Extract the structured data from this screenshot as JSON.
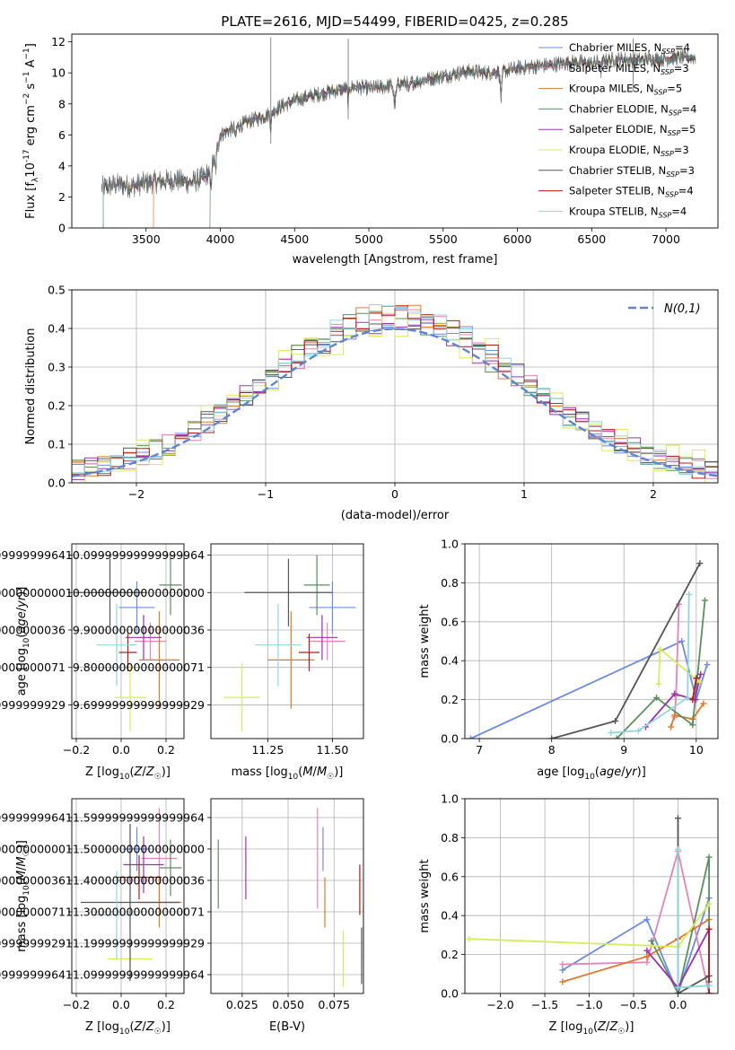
{
  "series_styles": [
    {
      "name": "Chabrier MILES",
      "nssp": "4",
      "color": "#6b8ce3"
    },
    {
      "name": "Salpeter MILES",
      "nssp": "3",
      "color": "#e882b4"
    },
    {
      "name": "Kroupa MILES",
      "nssp": "5",
      "color": "#e0782a"
    },
    {
      "name": "Chabrier ELODIE",
      "nssp": "4",
      "color": "#5a8f5e"
    },
    {
      "name": "Salpeter ELODIE",
      "nssp": "5",
      "color": "#9b30b0"
    },
    {
      "name": "Kroupa ELODIE",
      "nssp": "3",
      "color": "#d7ec5a"
    },
    {
      "name": "Chabrier STELIB",
      "nssp": "3",
      "color": "#555555"
    },
    {
      "name": "Salpeter STELIB",
      "nssp": "4",
      "color": "#b01c1c"
    },
    {
      "name": "Kroupa STELIB",
      "nssp": "4",
      "color": "#8fd6e0"
    }
  ],
  "chart_data": [
    {
      "id": "spectrum",
      "type": "line",
      "title": "PLATE=2616, MJD=54499, FIBERID=0425, z=0.285",
      "xlabel": "wavelength [Angstrom, rest frame]",
      "ylabel_prefix": "Flux [f",
      "ylabel_suffix": "10",
      "ylabel_exp": "-17",
      "ylabel_units": " erg cm",
      "xlim": [
        3000,
        7350
      ],
      "ylim": [
        0,
        12.5
      ],
      "xticks": [
        3500,
        4000,
        4500,
        5000,
        5500,
        6000,
        6500,
        7000
      ],
      "yticks": [
        0,
        2,
        4,
        6,
        8,
        10,
        12
      ],
      "grid": false,
      "legend_position": "upper-right",
      "continuum": {
        "x": [
          3200,
          3300,
          3400,
          3500,
          3600,
          3700,
          3800,
          3900,
          3950,
          4000,
          4100,
          4200,
          4300,
          4400,
          4500,
          4600,
          4700,
          4800,
          4900,
          5000,
          5100,
          5200,
          5300,
          5400,
          5500,
          5600,
          5700,
          5800,
          5900,
          6000,
          6100,
          6200,
          6300,
          6400,
          6500,
          6600,
          6700,
          6800,
          6900,
          7000,
          7100,
          7200
        ],
        "y": [
          2.6,
          2.8,
          2.7,
          2.9,
          3.0,
          3.1,
          2.9,
          3.3,
          4.2,
          6.0,
          6.5,
          6.9,
          7.2,
          7.8,
          8.2,
          8.5,
          8.7,
          8.9,
          9.1,
          9.0,
          9.1,
          9.3,
          9.4,
          9.6,
          9.8,
          10.0,
          10.1,
          10.0,
          10.1,
          10.3,
          10.4,
          10.5,
          10.6,
          10.7,
          10.6,
          10.8,
          10.9,
          10.8,
          10.9,
          10.9,
          11.0,
          11.0
        ]
      },
      "start_wavelengths": [
        3210,
        3210,
        3550,
        3930,
        3210,
        3210,
        3210,
        3210,
        3210
      ],
      "spike_lines": [
        {
          "x": 4340,
          "top": 12.3
        },
        {
          "x": 4861,
          "top": 12.2
        },
        {
          "x": 6780,
          "top": 12.2
        }
      ]
    },
    {
      "id": "residuals",
      "type": "bar",
      "xlabel": "(data-model)/error",
      "ylabel": "Normed distribution",
      "xlim": [
        -2.5,
        2.5
      ],
      "ylim": [
        0,
        0.5
      ],
      "xticks": [
        -2,
        -1,
        0,
        1,
        2
      ],
      "yticks": [
        0,
        0.1,
        0.2,
        0.3,
        0.4,
        0.5
      ],
      "grid": true,
      "bin_width": 0.1,
      "legend": {
        "label": "N(0,1)",
        "position": "upper-right"
      },
      "gaussian_sigma": 1
    },
    {
      "id": "age_vs_z",
      "type": "scatter",
      "xlabel": "Z [log10(Z/Z☉)]",
      "ylabel": "age  [log10(age/yr)]",
      "xlim": [
        -0.22,
        0.28
      ],
      "ylim": [
        9.61,
        10.13
      ],
      "xticks": [
        -0.2,
        0.0,
        0.2
      ],
      "yticks": [
        9.7,
        9.8,
        9.9,
        10.0,
        10.1
      ],
      "grid": true,
      "points": [
        {
          "x": 0.07,
          "y": 9.96,
          "xerr": 0.08,
          "yerr": 0.07
        },
        {
          "x": 0.13,
          "y": 9.87,
          "xerr": 0.07,
          "yerr": 0.05
        },
        {
          "x": 0.17,
          "y": 9.82,
          "xerr": 0.09,
          "yerr": 0.13
        },
        {
          "x": 0.22,
          "y": 10.02,
          "xerr": 0.05,
          "yerr": 0.08
        },
        {
          "x": 0.1,
          "y": 9.88,
          "xerr": 0.08,
          "yerr": 0.06
        },
        {
          "x": 0.04,
          "y": 9.72,
          "xerr": 0.07,
          "yerr": 0.09
        },
        {
          "x": -0.05,
          "y": 10.0,
          "xerr": 0.16,
          "yerr": 0.09
        },
        {
          "x": 0.03,
          "y": 9.84,
          "xerr": 0.04,
          "yerr": 0.05
        },
        {
          "x": -0.02,
          "y": 9.86,
          "xerr": 0.09,
          "yerr": 0.11
        }
      ]
    },
    {
      "id": "age_vs_mass",
      "type": "scatter",
      "xlabel": "mass [log10(M/M☉)]",
      "xlim": [
        11.03,
        11.62
      ],
      "ylim": [
        9.61,
        10.13
      ],
      "xticks": [
        11.25,
        11.5
      ],
      "yticks": [
        9.7,
        9.8,
        9.9,
        10.0,
        10.1
      ],
      "grid": true,
      "points": [
        {
          "x": 11.5,
          "y": 9.96,
          "xerr": 0.09,
          "yerr": 0.07
        },
        {
          "x": 11.48,
          "y": 9.87,
          "xerr": 0.07,
          "yerr": 0.05
        },
        {
          "x": 11.34,
          "y": 9.82,
          "xerr": 0.09,
          "yerr": 0.13
        },
        {
          "x": 11.44,
          "y": 10.02,
          "xerr": 0.05,
          "yerr": 0.08
        },
        {
          "x": 11.46,
          "y": 9.88,
          "xerr": 0.06,
          "yerr": 0.06
        },
        {
          "x": 11.15,
          "y": 9.72,
          "xerr": 0.07,
          "yerr": 0.09
        },
        {
          "x": 11.33,
          "y": 10.0,
          "xerr": 0.17,
          "yerr": 0.09
        },
        {
          "x": 11.41,
          "y": 9.84,
          "xerr": 0.04,
          "yerr": 0.05
        },
        {
          "x": 11.29,
          "y": 9.86,
          "xerr": 0.09,
          "yerr": 0.11
        }
      ]
    },
    {
      "id": "weight_vs_age",
      "type": "line",
      "xlabel": "age  [log10(age/yr)]",
      "ylabel": "mass weight",
      "xlim": [
        6.8,
        10.3
      ],
      "ylim": [
        0,
        1
      ],
      "xticks": [
        7,
        8,
        9,
        10
      ],
      "yticks": [
        0,
        0.2,
        0.4,
        0.6,
        0.8,
        1.0
      ],
      "grid": true,
      "series": [
        {
          "x": [
            6.88,
            9.8,
            10.0,
            10.15
          ],
          "y": [
            0.0,
            0.5,
            0.2,
            0.38
          ]
        },
        {
          "x": [
            9.7,
            9.72,
            9.76
          ],
          "y": [
            0.11,
            0.22,
            0.69
          ]
        },
        {
          "x": [
            9.65,
            9.7,
            9.95,
            10.1
          ],
          "y": [
            0.06,
            0.12,
            0.1,
            0.18
          ]
        },
        {
          "x": [
            8.9,
            9.45,
            9.95,
            10.12
          ],
          "y": [
            0.0,
            0.21,
            0.07,
            0.71
          ]
        },
        {
          "x": [
            9.3,
            9.7,
            9.98,
            10.06
          ],
          "y": [
            0.06,
            0.23,
            0.2,
            0.33
          ]
        },
        {
          "x": [
            9.48,
            9.5,
            10.05
          ],
          "y": [
            0.28,
            0.46,
            0.29
          ]
        },
        {
          "x": [
            8.0,
            8.88,
            10.05
          ],
          "y": [
            0.0,
            0.09,
            0.9
          ]
        },
        {
          "x": [
            9.95,
            10.0
          ],
          "y": [
            0.2,
            0.31
          ]
        },
        {
          "x": [
            8.82,
            9.2,
            9.88,
            9.9
          ],
          "y": [
            0.03,
            0.04,
            0.21,
            0.74
          ]
        }
      ]
    },
    {
      "id": "mass_vs_z",
      "type": "scatter",
      "xlabel": "Z [log10(Z/Z☉)]",
      "ylabel": "mass [log10(M/M☉)]",
      "xlim": [
        -0.22,
        0.28
      ],
      "ylim": [
        11.04,
        11.66
      ],
      "xticks": [
        -0.2,
        0.0,
        0.2
      ],
      "yticks": [
        11.1,
        11.2,
        11.3,
        11.4,
        11.5,
        11.6
      ],
      "grid": true,
      "points": [
        {
          "x": 0.07,
          "y": 11.5,
          "xerr": 0.06,
          "yerr": 0.07
        },
        {
          "x": 0.17,
          "y": 11.47,
          "xerr": 0.08,
          "yerr": 0.16
        },
        {
          "x": 0.17,
          "y": 11.33,
          "xerr": 0.1,
          "yerr": 0.08
        },
        {
          "x": 0.22,
          "y": 11.44,
          "xerr": 0.05,
          "yerr": 0.09
        },
        {
          "x": 0.1,
          "y": 11.45,
          "xerr": 0.09,
          "yerr": 0.09
        },
        {
          "x": 0.04,
          "y": 11.15,
          "xerr": 0.1,
          "yerr": 0.07
        },
        {
          "x": 0.04,
          "y": 11.33,
          "xerr": 0.22,
          "yerr": 0.25
        },
        {
          "x": 0.08,
          "y": 11.41,
          "xerr": 0.1,
          "yerr": 0.07
        },
        {
          "x": -0.02,
          "y": 11.29,
          "xerr": 0.1,
          "yerr": 0.14
        }
      ]
    },
    {
      "id": "mass_vs_ebv",
      "type": "scatter",
      "xlabel": "E(B-V)",
      "xlim": [
        0.008,
        0.091
      ],
      "ylim": [
        11.04,
        11.66
      ],
      "xticks": [
        0.025,
        0.05,
        0.075
      ],
      "yticks": [
        11.1,
        11.2,
        11.3,
        11.4,
        11.5,
        11.6
      ],
      "grid": true,
      "points": [
        {
          "x": 0.069,
          "y": 11.5,
          "yerr": 0.07
        },
        {
          "x": 0.066,
          "y": 11.47,
          "yerr": 0.16
        },
        {
          "x": 0.07,
          "y": 11.33,
          "yerr": 0.08
        },
        {
          "x": 0.012,
          "y": 11.42,
          "yerr": 0.11
        },
        {
          "x": 0.027,
          "y": 11.44,
          "yerr": 0.1
        },
        {
          "x": 0.08,
          "y": 11.15,
          "yerr": 0.09
        },
        {
          "x": 0.09,
          "y": 11.16,
          "yerr": 0.09
        },
        {
          "x": 0.089,
          "y": 11.37,
          "yerr": 0.08
        },
        {
          "x": 0.091,
          "y": 11.24,
          "yerr": 0.09
        }
      ]
    },
    {
      "id": "weight_vs_z",
      "type": "line",
      "xlabel": "Z [log10(Z/Z☉)]",
      "ylabel": "mass weight",
      "xlim": [
        -2.4,
        0.45
      ],
      "ylim": [
        0,
        1
      ],
      "xticks": [
        -2.0,
        -1.5,
        -1.0,
        -0.5,
        0.0
      ],
      "yticks": [
        0,
        0.2,
        0.4,
        0.6,
        0.8,
        1.0
      ],
      "grid": true,
      "series": [
        {
          "x": [
            -1.3,
            -0.35,
            0.0,
            0.35
          ],
          "y": [
            0.12,
            0.38,
            0.0,
            0.49
          ]
        },
        {
          "x": [
            -1.3,
            -0.35,
            0.0,
            0.35
          ],
          "y": [
            0.15,
            0.16,
            0.73,
            0.0
          ]
        },
        {
          "x": [
            -1.3,
            -0.35,
            0.0,
            0.35
          ],
          "y": [
            0.06,
            0.19,
            0.28,
            0.38
          ]
        },
        {
          "x": [
            -0.3,
            0.0,
            0.35,
            0.35
          ],
          "y": [
            0.27,
            0.0,
            0.7,
            0.06
          ]
        },
        {
          "x": [
            -0.35,
            0.0,
            0.35,
            0.35
          ],
          "y": [
            0.22,
            0.03,
            0.33,
            0.04
          ]
        },
        {
          "x": [
            -2.35,
            0.0,
            0.35
          ],
          "y": [
            0.28,
            0.24,
            0.46
          ]
        },
        {
          "x": [
            0.0,
            0.0,
            0.35
          ],
          "y": [
            0.9,
            0.0,
            0.09
          ]
        },
        {
          "x": [
            0.35,
            0.35
          ],
          "y": [
            0.0,
            0.33
          ]
        },
        {
          "x": [
            0.0,
            0.0,
            0.35
          ],
          "y": [
            0.74,
            0.03,
            0.04
          ]
        }
      ]
    }
  ]
}
